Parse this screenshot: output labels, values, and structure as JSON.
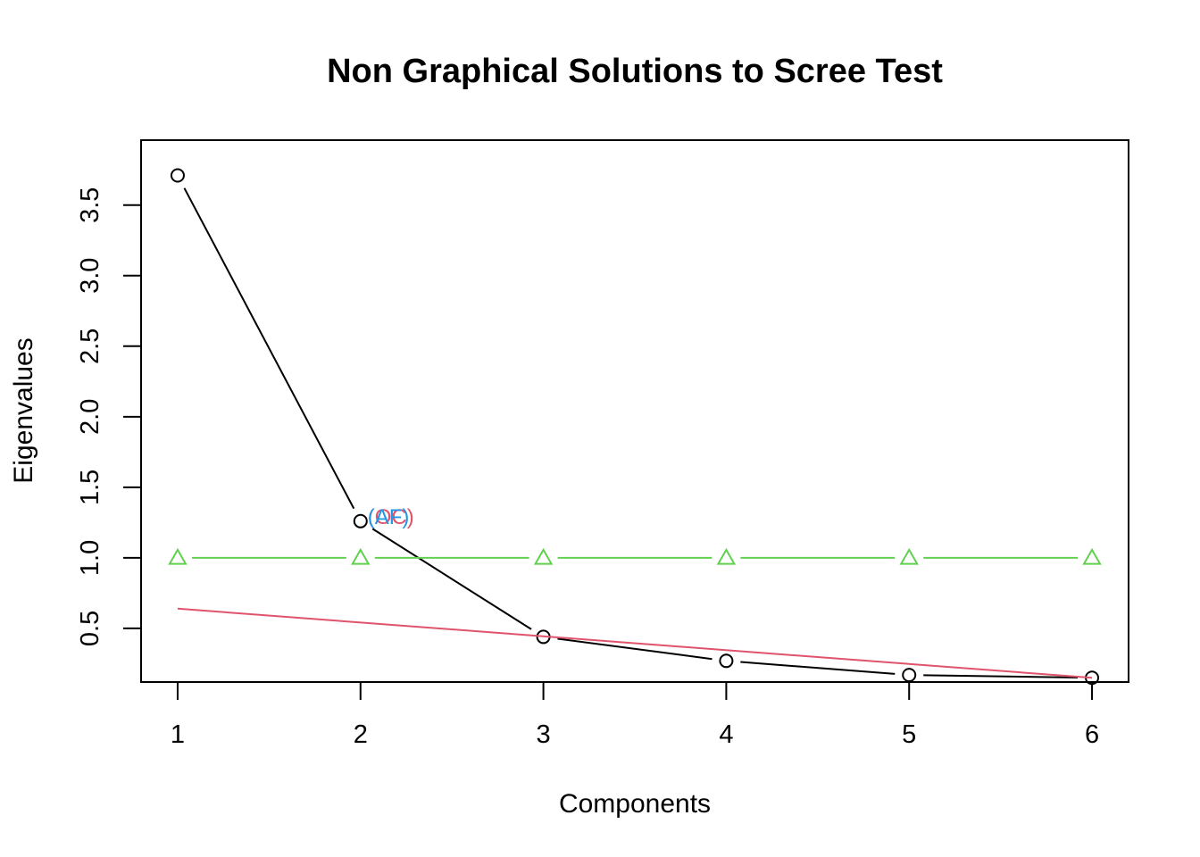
{
  "chart_data": {
    "type": "line",
    "title": "Non Graphical Solutions to Scree Test",
    "xlabel": "Components",
    "ylabel": "Eigenvalues",
    "xlim": [
      0.8,
      6.2
    ],
    "ylim": [
      0.12,
      3.96
    ],
    "x_ticks": [
      1,
      2,
      3,
      4,
      5,
      6
    ],
    "x_tick_labels": [
      "1",
      "2",
      "3",
      "4",
      "5",
      "6"
    ],
    "y_ticks": [
      0.5,
      1.0,
      1.5,
      2.0,
      2.5,
      3.0,
      3.5
    ],
    "y_tick_labels": [
      "0.5",
      "1.0",
      "1.5",
      "2.0",
      "2.5",
      "3.0",
      "3.5"
    ],
    "grid": false,
    "series": [
      {
        "kind": "eigenvalues",
        "x": [
          1,
          2,
          3,
          4,
          5,
          6
        ],
        "values": [
          3.71,
          1.26,
          0.44,
          0.27,
          0.17,
          0.15
        ],
        "color": "#000000",
        "marker": "circle"
      },
      {
        "kind": "mean-eigenvalue",
        "x": [
          1,
          2,
          3,
          4,
          5,
          6
        ],
        "values": [
          1.0,
          1.0,
          1.0,
          1.0,
          1.0,
          1.0
        ],
        "color": "#61D04F",
        "marker": "triangle"
      },
      {
        "kind": "optimal-coordinates",
        "x": [
          1,
          6
        ],
        "values": [
          0.64,
          0.15
        ],
        "color": "#DF536B",
        "marker": "none"
      }
    ],
    "annotations": [
      {
        "text": "(OC)",
        "x": 2,
        "y": 1.26,
        "color": "#DF536B"
      },
      {
        "text": "(AF)",
        "x": 2,
        "y": 1.26,
        "color": "#2297E6"
      }
    ]
  }
}
